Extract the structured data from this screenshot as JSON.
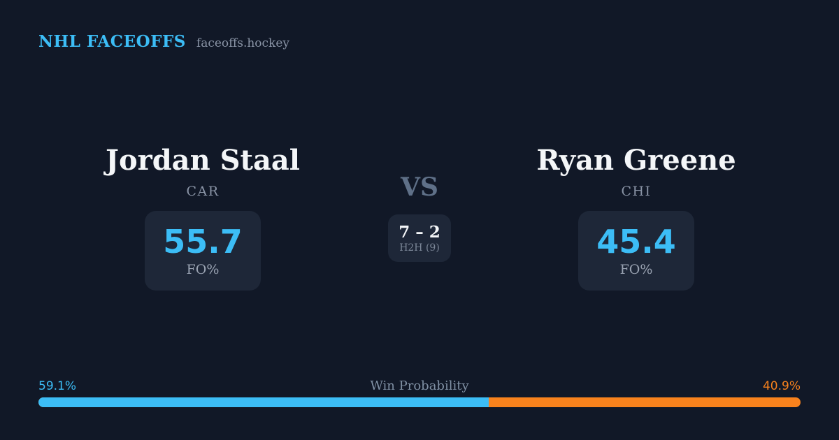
{
  "header": {
    "brand": "NHL FACEOFFS",
    "site": "faceoffs.hockey"
  },
  "matchup": {
    "vs_label": "VS",
    "h2h": {
      "score": "7 – 2",
      "label": "H2H (9)",
      "games": 9
    },
    "left_player": {
      "name": "Jordan Staal",
      "team": "CAR",
      "fo_pct": "55.7",
      "stat_label": "FO%"
    },
    "right_player": {
      "name": "Ryan Greene",
      "team": "CHI",
      "fo_pct": "45.4",
      "stat_label": "FO%"
    }
  },
  "win_probability": {
    "title": "Win Probability",
    "left_label": "59.1%",
    "right_label": "40.9%",
    "left_value": 59.1,
    "right_value": 40.9
  },
  "colors": {
    "background": "#111827",
    "card": "#1e2738",
    "accent_blue": "#3cbdf6",
    "accent_orange": "#f8821d",
    "text_primary": "#f4f6f8",
    "text_muted": "#8a94a6",
    "vs_muted": "#5f7088"
  },
  "chart_data": {
    "type": "bar",
    "title": "Win Probability",
    "categories": [
      "Jordan Staal (CAR)",
      "Ryan Greene (CHI)"
    ],
    "values": [
      59.1,
      40.9
    ],
    "unit": "%",
    "xlim": [
      0,
      100
    ],
    "orientation": "horizontal-stacked",
    "related_stats": {
      "fo_pct": {
        "Jordan Staal": 55.7,
        "Ryan Greene": 45.4
      },
      "head_to_head": {
        "left_wins": 7,
        "right_wins": 2,
        "games": 9
      }
    }
  }
}
